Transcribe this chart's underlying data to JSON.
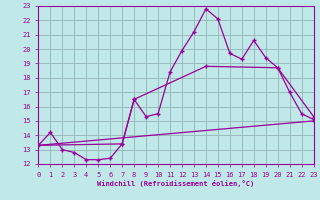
{
  "bg_color": "#c0e8e8",
  "line_color": "#990099",
  "grid_color": "#99bbbb",
  "xlabel": "Windchill (Refroidissement éolien,°C)",
  "xlim": [
    0,
    23
  ],
  "ylim": [
    12,
    23
  ],
  "xticks": [
    0,
    1,
    2,
    3,
    4,
    5,
    6,
    7,
    8,
    9,
    10,
    11,
    12,
    13,
    14,
    15,
    16,
    17,
    18,
    19,
    20,
    21,
    22,
    23
  ],
  "yticks": [
    12,
    13,
    14,
    15,
    16,
    17,
    18,
    19,
    20,
    21,
    22,
    23
  ],
  "line1_x": [
    0,
    1,
    2,
    3,
    4,
    5,
    6,
    7,
    8,
    9,
    10,
    11,
    12,
    13,
    14,
    15,
    16,
    17,
    18,
    19,
    20,
    21,
    22,
    23
  ],
  "line1_y": [
    13.3,
    14.2,
    13.0,
    12.8,
    12.3,
    12.3,
    12.4,
    13.4,
    16.5,
    15.3,
    15.5,
    18.4,
    19.9,
    21.2,
    22.8,
    22.1,
    19.7,
    19.3,
    20.6,
    19.4,
    18.7,
    17.0,
    15.5,
    15.1
  ],
  "line2_x": [
    0,
    7,
    8,
    14,
    20,
    23
  ],
  "line2_y": [
    13.3,
    13.4,
    16.5,
    18.8,
    18.7,
    15.3
  ],
  "line3_x": [
    0,
    23
  ],
  "line3_y": [
    13.3,
    15.0
  ]
}
